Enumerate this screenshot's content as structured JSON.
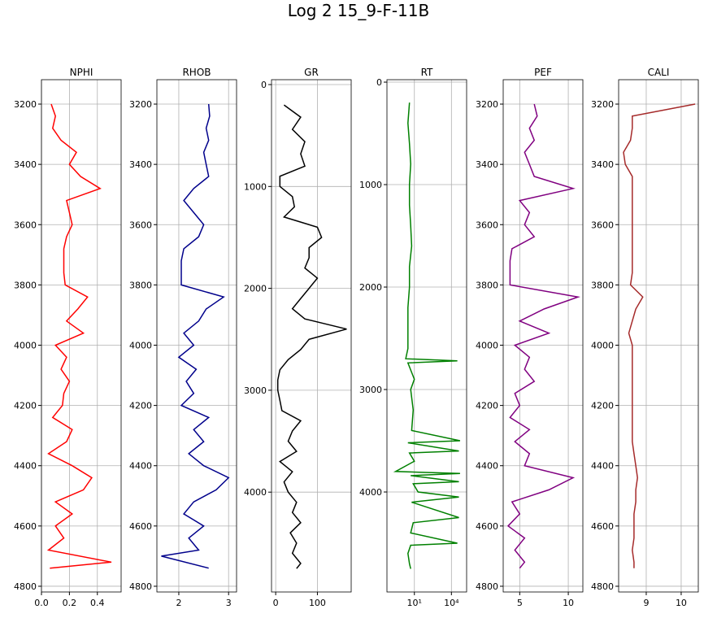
{
  "title": "Log 2 15_9-F-11B",
  "chart_data": [
    {
      "type": "line",
      "title": "NPHI",
      "color": "#ff0000",
      "scale": "linear",
      "grid": true,
      "xlim": [
        0,
        0.57
      ],
      "xticks": [
        {
          "value": 0,
          "label": "0.0"
        },
        {
          "value": 0.2,
          "label": "0.2"
        },
        {
          "value": 0.4,
          "label": "0.4"
        }
      ],
      "ylim": [
        4819,
        3119
      ],
      "yticks": [
        3200,
        3400,
        3600,
        3800,
        4000,
        4200,
        4400,
        4600,
        4800
      ],
      "depth": [
        3200,
        3240,
        3280,
        3320,
        3360,
        3400,
        3440,
        3480,
        3520,
        3560,
        3600,
        3640,
        3680,
        3720,
        3760,
        3800,
        3840,
        3880,
        3920,
        3960,
        4000,
        4040,
        4080,
        4120,
        4160,
        4200,
        4240,
        4280,
        4320,
        4360,
        4400,
        4440,
        4480,
        4520,
        4560,
        4600,
        4640,
        4680,
        4720,
        4740
      ],
      "values": [
        0.07,
        0.1,
        0.08,
        0.14,
        0.25,
        0.2,
        0.28,
        0.42,
        0.18,
        0.2,
        0.22,
        0.18,
        0.16,
        0.16,
        0.16,
        0.17,
        0.33,
        0.26,
        0.18,
        0.3,
        0.1,
        0.18,
        0.14,
        0.2,
        0.16,
        0.15,
        0.08,
        0.22,
        0.18,
        0.05,
        0.22,
        0.36,
        0.3,
        0.1,
        0.22,
        0.1,
        0.16,
        0.05,
        0.5,
        0.06
      ]
    },
    {
      "type": "line",
      "title": "RHOB",
      "color": "#00008b",
      "scale": "linear",
      "grid": true,
      "xlim": [
        1.56,
        3.16
      ],
      "xticks": [
        2,
        3
      ],
      "ylim": [
        4819,
        3119
      ],
      "yticks": [
        3200,
        3400,
        3600,
        3800,
        4000,
        4200,
        4400,
        4600,
        4800
      ],
      "depth": [
        3200,
        3240,
        3280,
        3320,
        3360,
        3400,
        3440,
        3480,
        3520,
        3560,
        3600,
        3640,
        3680,
        3720,
        3760,
        3800,
        3840,
        3880,
        3920,
        3960,
        4000,
        4040,
        4080,
        4120,
        4160,
        4200,
        4240,
        4280,
        4320,
        4360,
        4400,
        4440,
        4480,
        4520,
        4560,
        4600,
        4640,
        4680,
        4700,
        4740
      ],
      "values": [
        2.6,
        2.62,
        2.55,
        2.6,
        2.5,
        2.55,
        2.6,
        2.3,
        2.1,
        2.3,
        2.5,
        2.4,
        2.1,
        2.05,
        2.05,
        2.05,
        2.9,
        2.55,
        2.4,
        2.1,
        2.3,
        2.0,
        2.35,
        2.15,
        2.3,
        2.05,
        2.6,
        2.3,
        2.5,
        2.2,
        2.5,
        3.0,
        2.75,
        2.3,
        2.1,
        2.5,
        2.2,
        2.4,
        1.65,
        2.6
      ]
    },
    {
      "type": "line",
      "title": "GR",
      "color": "#000000",
      "scale": "linear",
      "grid": true,
      "xlim": [
        -10,
        181
      ],
      "xticks": [
        0,
        100
      ],
      "ylim": [
        4980,
        -48
      ],
      "yticks": [
        0,
        1000,
        2000,
        3000,
        4000
      ],
      "depth": [
        200,
        320,
        440,
        560,
        680,
        800,
        900,
        1000,
        1100,
        1200,
        1300,
        1400,
        1500,
        1600,
        1700,
        1800,
        1900,
        2000,
        2100,
        2200,
        2300,
        2400,
        2500,
        2600,
        2700,
        2800,
        2900,
        3000,
        3100,
        3200,
        3300,
        3400,
        3500,
        3600,
        3700,
        3800,
        3900,
        4000,
        4100,
        4200,
        4300,
        4400,
        4500,
        4600,
        4700,
        4750
      ],
      "values": [
        20,
        60,
        40,
        70,
        60,
        70,
        10,
        10,
        40,
        45,
        20,
        100,
        110,
        80,
        80,
        70,
        100,
        80,
        60,
        40,
        70,
        170,
        80,
        60,
        30,
        10,
        5,
        5,
        10,
        15,
        60,
        40,
        30,
        50,
        10,
        40,
        20,
        30,
        50,
        40,
        60,
        35,
        50,
        40,
        60,
        50
      ]
    },
    {
      "type": "line",
      "title": "RT",
      "color": "#008000",
      "scale": "log",
      "grid": true,
      "xlim": [
        0.06,
        170000
      ],
      "xticks": [
        {
          "value": 10,
          "label": "10¹"
        },
        {
          "value": 10000,
          "label": "10⁴"
        }
      ],
      "ylim": [
        4976,
        -24
      ],
      "yticks": [
        0,
        1000,
        2000,
        3000,
        4000
      ],
      "depth": [
        200,
        400,
        600,
        800,
        1000,
        1200,
        1400,
        1600,
        1800,
        2000,
        2200,
        2400,
        2600,
        2700,
        2720,
        2740,
        2900,
        3000,
        3200,
        3400,
        3500,
        3520,
        3600,
        3620,
        3700,
        3800,
        3820,
        3840,
        3900,
        3920,
        4000,
        4050,
        4100,
        4250,
        4300,
        4400,
        4500,
        4520,
        4600,
        4700,
        4750
      ],
      "values": [
        4,
        3,
        4,
        5,
        4,
        4,
        5,
        6,
        4,
        4,
        3,
        3,
        3,
        2,
        30000,
        3,
        10,
        5,
        8,
        6,
        50000,
        3,
        40000,
        4,
        10,
        0.3,
        50000,
        5,
        40000,
        8,
        20,
        40000,
        6,
        40000,
        8,
        5,
        30000,
        5,
        3,
        4,
        5
      ]
    },
    {
      "type": "line",
      "title": "PEF",
      "color": "#800080",
      "scale": "linear",
      "grid": true,
      "xlim": [
        3.3,
        11.5
      ],
      "xticks": [
        5,
        10
      ],
      "ylim": [
        4819,
        3119
      ],
      "yticks": [
        3200,
        3400,
        3600,
        3800,
        4000,
        4200,
        4400,
        4600,
        4800
      ],
      "depth": [
        3200,
        3240,
        3280,
        3320,
        3360,
        3400,
        3440,
        3480,
        3520,
        3560,
        3600,
        3640,
        3680,
        3720,
        3760,
        3800,
        3840,
        3880,
        3920,
        3960,
        4000,
        4040,
        4080,
        4120,
        4160,
        4200,
        4240,
        4280,
        4320,
        4360,
        4400,
        4440,
        4480,
        4520,
        4560,
        4600,
        4640,
        4680,
        4720,
        4740
      ],
      "values": [
        6.5,
        6.8,
        6.0,
        6.5,
        5.5,
        6.0,
        6.5,
        10.5,
        5.0,
        6.0,
        5.5,
        6.5,
        4.2,
        4.0,
        4.0,
        4.0,
        11.0,
        7.5,
        5.0,
        8.0,
        4.5,
        6.0,
        5.5,
        6.5,
        4.5,
        5.0,
        4.0,
        6.0,
        4.5,
        6.0,
        5.5,
        10.5,
        8.0,
        4.2,
        5.0,
        3.8,
        5.5,
        4.5,
        5.5,
        5.0
      ]
    },
    {
      "type": "line",
      "title": "CALI",
      "color": "#a52a2a",
      "scale": "linear",
      "grid": true,
      "xlim": [
        8.21,
        10.49
      ],
      "xticks": [
        9,
        10
      ],
      "ylim": [
        4819,
        3119
      ],
      "yticks": [
        3200,
        3400,
        3600,
        3800,
        4000,
        4200,
        4400,
        4600,
        4800
      ],
      "depth": [
        3200,
        3240,
        3280,
        3320,
        3360,
        3400,
        3440,
        3480,
        3520,
        3560,
        3600,
        3640,
        3680,
        3720,
        3760,
        3800,
        3840,
        3880,
        3920,
        3960,
        4000,
        4040,
        4080,
        4120,
        4160,
        4200,
        4240,
        4280,
        4320,
        4360,
        4400,
        4440,
        4480,
        4520,
        4560,
        4600,
        4640,
        4680,
        4720,
        4740
      ],
      "values": [
        10.4,
        8.6,
        8.6,
        8.55,
        8.35,
        8.4,
        8.6,
        8.6,
        8.6,
        8.6,
        8.6,
        8.6,
        8.6,
        8.6,
        8.6,
        8.55,
        8.9,
        8.7,
        8.6,
        8.5,
        8.6,
        8.6,
        8.6,
        8.6,
        8.6,
        8.6,
        8.6,
        8.6,
        8.6,
        8.65,
        8.7,
        8.75,
        8.7,
        8.7,
        8.65,
        8.65,
        8.65,
        8.6,
        8.65,
        8.65
      ]
    }
  ]
}
